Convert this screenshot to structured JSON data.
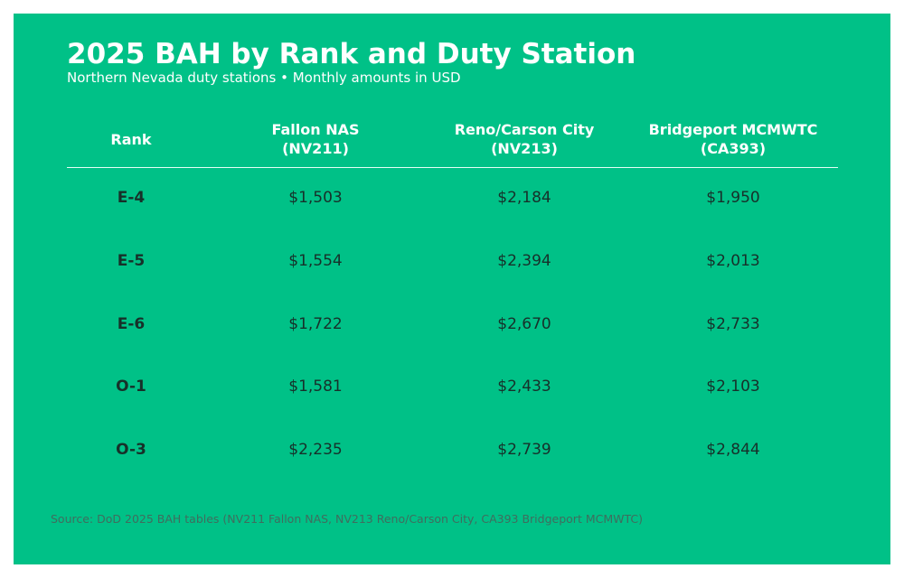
{
  "title": "2025 BAH by Rank and Duty Station",
  "subtitle": "Northern Nevada duty stations • Monthly amounts in USD",
  "source": "Source: DoD 2025 BAH tables (NV211 Fallon NAS, NV213 Reno/Carson City, CA393 Bridgeport MCMWTC)",
  "colors": {
    "background": "#00c187",
    "header_text": "#ffffff",
    "body_text": "#17302a",
    "source_text": "#3f6d5e"
  },
  "chart_data": {
    "type": "table",
    "title": "2025 BAH by Rank and Duty Station",
    "subtitle": "Northern Nevada duty stations • Monthly amounts in USD",
    "columns": [
      "Rank",
      "Fallon NAS\n(NV211)",
      "Reno/Carson City\n(NV213)",
      "Bridgeport MCMWTC\n(CA393)"
    ],
    "rows": [
      [
        "E-4",
        "$1,503",
        "$2,184",
        "$1,950"
      ],
      [
        "E-5",
        "$1,554",
        "$2,394",
        "$2,013"
      ],
      [
        "E-6",
        "$1,722",
        "$2,670",
        "$2,733"
      ],
      [
        "O-1",
        "$1,581",
        "$2,433",
        "$2,103"
      ],
      [
        "O-3",
        "$2,235",
        "$2,739",
        "$2,844"
      ]
    ]
  }
}
